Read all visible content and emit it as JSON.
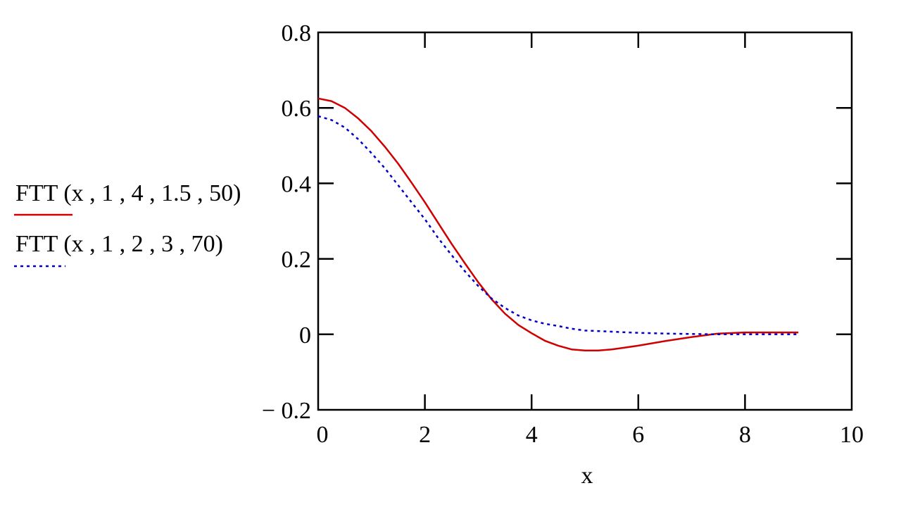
{
  "chart_data": {
    "type": "line",
    "title": "",
    "xlabel": "x",
    "ylabel": "",
    "xlim": [
      0,
      10
    ],
    "ylim": [
      -0.2,
      0.8
    ],
    "x_ticks": [
      "0",
      "2",
      "4",
      "6",
      "8",
      "10"
    ],
    "y_ticks": [
      "0.8",
      "0.6",
      "0.4",
      "0.2",
      "0",
      "− 0.2"
    ],
    "grid": false,
    "legend_position": "left",
    "series": [
      {
        "name": "FTT (x , 1 , 4 , 1.5 , 50)",
        "color": "#d00000",
        "style": "solid",
        "x": [
          0,
          0.25,
          0.5,
          0.75,
          1.0,
          1.25,
          1.5,
          1.75,
          2.0,
          2.25,
          2.5,
          2.75,
          3.0,
          3.25,
          3.5,
          3.75,
          4.0,
          4.25,
          4.5,
          4.75,
          5.0,
          5.25,
          5.5,
          5.75,
          6.0,
          6.5,
          7.0,
          7.5,
          8.0,
          8.5,
          9.0
        ],
        "y": [
          0.625,
          0.618,
          0.6,
          0.572,
          0.538,
          0.497,
          0.452,
          0.402,
          0.35,
          0.295,
          0.24,
          0.188,
          0.138,
          0.093,
          0.055,
          0.025,
          0.003,
          -0.017,
          -0.03,
          -0.04,
          -0.043,
          -0.043,
          -0.04,
          -0.035,
          -0.03,
          -0.018,
          -0.007,
          0.002,
          0.005,
          0.005,
          0.005
        ]
      },
      {
        "name": "FTT (x , 1 , 2 , 3 , 70)",
        "color": "#0000c8",
        "style": "dotted",
        "x": [
          0,
          0.25,
          0.5,
          0.75,
          1.0,
          1.25,
          1.5,
          1.75,
          2.0,
          2.25,
          2.5,
          2.75,
          3.0,
          3.25,
          3.5,
          3.75,
          4.0,
          4.25,
          4.5,
          4.75,
          5.0,
          5.5,
          6.0,
          6.5,
          7.0,
          7.5,
          8.0,
          8.5,
          9.0
        ],
        "y": [
          0.578,
          0.568,
          0.548,
          0.517,
          0.48,
          0.44,
          0.395,
          0.35,
          0.305,
          0.255,
          0.21,
          0.167,
          0.128,
          0.095,
          0.07,
          0.05,
          0.037,
          0.028,
          0.022,
          0.015,
          0.01,
          0.007,
          0.004,
          0.002,
          0.001,
          0.0,
          0.0,
          0.0,
          0.0
        ]
      }
    ]
  }
}
